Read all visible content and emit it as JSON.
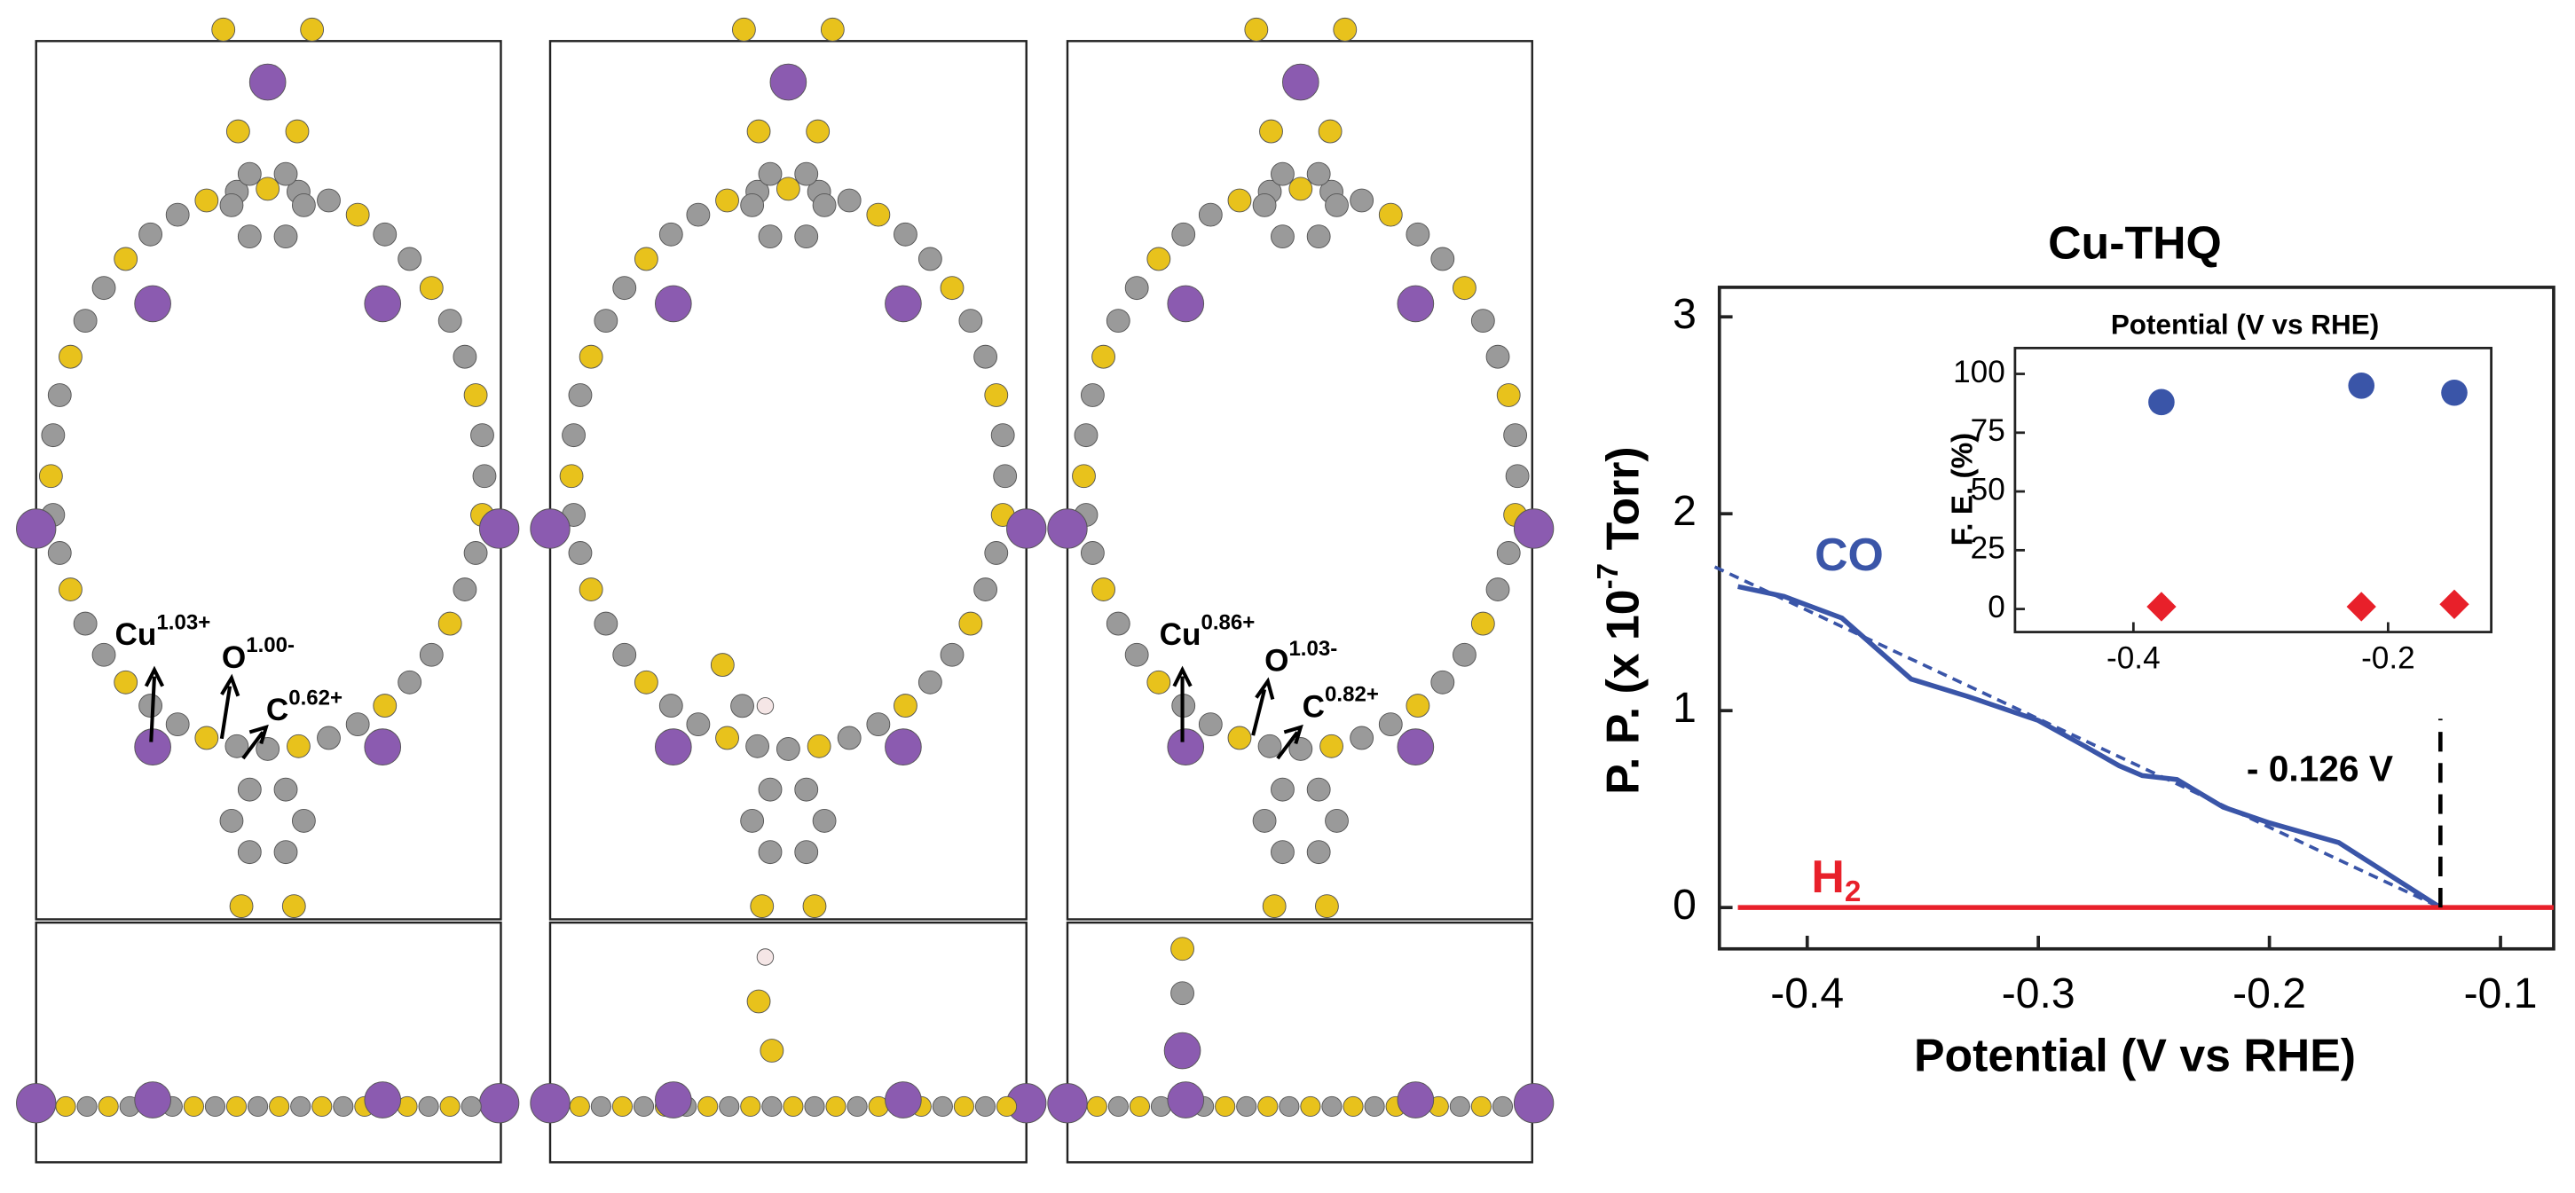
{
  "structures": [
    {
      "labels": [
        {
          "element": "Cu",
          "charge": "1.03+"
        },
        {
          "element": "O",
          "charge": "1.00-"
        },
        {
          "element": "C",
          "charge": "0.62+"
        }
      ]
    },
    {
      "labels": [
        {
          "element": "Cu",
          "charge": "0.86+"
        },
        {
          "element": "O",
          "charge": "1.03-"
        },
        {
          "element": "C",
          "charge": "0.82+"
        }
      ]
    }
  ],
  "chart_data": [
    {
      "type": "line",
      "title": "Cu-THQ",
      "x_label": "Potential (V vs RHE)",
      "y_label": {
        "text": "P. P. (x 10",
        "superscript": "-7",
        "suffix": " Torr)"
      },
      "xlim": [
        -0.438,
        -0.077
      ],
      "xticks": [
        -0.4,
        -0.3,
        -0.2,
        -0.1
      ],
      "ylim": [
        -0.21,
        3.15
      ],
      "yticks": [
        0,
        1,
        2,
        3
      ],
      "series": [
        {
          "name": "CO",
          "color": "#3a55a8",
          "x": [
            -0.43,
            -0.41,
            -0.385,
            -0.355,
            -0.33,
            -0.3,
            -0.28,
            -0.265,
            -0.255,
            -0.24,
            -0.22,
            -0.2,
            -0.17,
            -0.15,
            -0.126
          ],
          "values": [
            1.63,
            1.58,
            1.47,
            1.16,
            1.07,
            0.95,
            0.82,
            0.72,
            0.67,
            0.65,
            0.51,
            0.43,
            0.33,
            0.18,
            0
          ]
        },
        {
          "name": "H",
          "name_subscript": "2",
          "color": "#e8202a",
          "x": [
            -0.43,
            -0.077
          ],
          "values": [
            0,
            0
          ]
        }
      ],
      "fit": {
        "color": "#3a55a8",
        "x": [
          -0.44,
          -0.126
        ],
        "values": [
          1.73,
          0
        ]
      },
      "marker": {
        "x": -0.126,
        "label": "- 0.126 V"
      }
    },
    {
      "type": "scatter",
      "title": "Potential (V vs RHE)",
      "y_label": "F. E. (%)",
      "xlim": [
        -0.493,
        -0.119
      ],
      "xticks": [
        -0.4,
        -0.2
      ],
      "ylim": [
        -9.8,
        111
      ],
      "yticks": [
        0,
        25,
        50,
        75,
        100
      ],
      "series": [
        {
          "name": "CO",
          "color": "#3a55a8",
          "marker": "circle",
          "x": [
            -0.378,
            -0.221,
            -0.148
          ],
          "values": [
            88,
            95,
            92
          ]
        },
        {
          "name": "H",
          "name_subscript": "2",
          "color": "#e8202a",
          "marker": "diamond",
          "x": [
            -0.378,
            -0.221,
            -0.148
          ],
          "values": [
            1,
            1,
            2
          ]
        }
      ]
    }
  ]
}
